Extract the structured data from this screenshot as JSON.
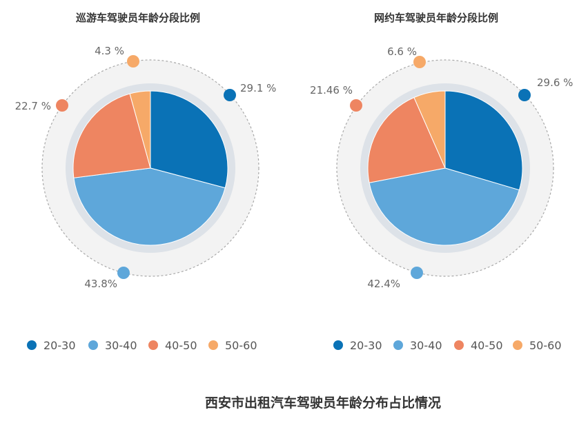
{
  "title": "西安市出租汽车驾驶员年龄分布占比情况",
  "colors": {
    "20-30": "#0A72B6",
    "30-40": "#5EA7DA",
    "40-50": "#EE8561",
    "50-60": "#F6A968"
  },
  "chart_data": [
    {
      "type": "pie",
      "title": "巡游车驾驶员年龄分段比例",
      "categories": [
        "20-30",
        "30-40",
        "40-50",
        "50-60"
      ],
      "values": [
        29.1,
        43.8,
        22.7,
        4.3
      ],
      "labels": [
        "29.1 %",
        "43.8%",
        "22.7 %",
        "4.3 %"
      ],
      "legend": [
        "20-30",
        "30-40",
        "40-50",
        "50-60"
      ],
      "legend_position": "bottom"
    },
    {
      "type": "pie",
      "title": "网约车驾驶员年龄分段比例",
      "categories": [
        "20-30",
        "30-40",
        "40-50",
        "50-60"
      ],
      "values": [
        29.6,
        42.4,
        21.46,
        6.6
      ],
      "labels": [
        "29.6 %",
        "42.4%",
        "21.46 %",
        "6.6 %"
      ],
      "legend": [
        "20-30",
        "30-40",
        "40-50",
        "50-60"
      ],
      "legend_position": "bottom"
    }
  ]
}
